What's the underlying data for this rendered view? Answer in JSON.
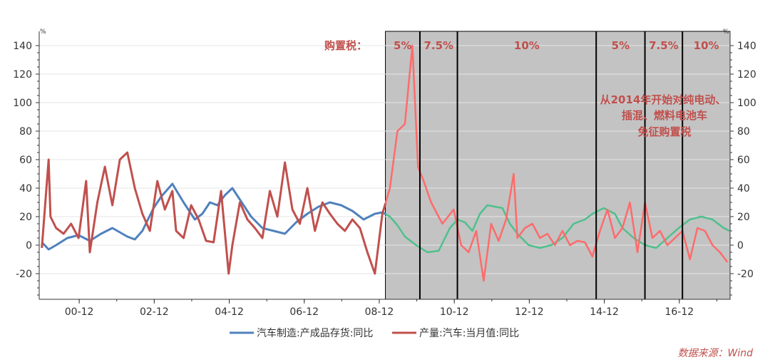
{
  "chart_data": {
    "type": "line",
    "left_unit": "%",
    "right_unit": "%",
    "y_ticks": [
      "140",
      "120",
      "100",
      "80",
      "60",
      "40",
      "20",
      "0",
      "-20"
    ],
    "ylim": [
      -38,
      150
    ],
    "x_ticks": [
      "00-12",
      "02-12",
      "04-12",
      "06-12",
      "08-12",
      "10-12",
      "12-12",
      "14-12",
      "16-12"
    ],
    "xlim": [
      1999.85,
      2018.27
    ],
    "grid": true,
    "legend_position": "bottom",
    "tax_label": "购置税：",
    "tax_periods": [
      {
        "start": 2009.08,
        "end": 2010.0,
        "label": "5%"
      },
      {
        "start": 2010.0,
        "end": 2011.0,
        "label": "7.5%"
      },
      {
        "start": 2011.0,
        "end": 2014.7,
        "label": "10%"
      },
      {
        "start": 2014.7,
        "end": 2016.0,
        "label": "5%"
      },
      {
        "start": 2016.0,
        "end": 2017.0,
        "label": "7.5%"
      },
      {
        "start": 2017.0,
        "end": 2018.27,
        "label": "10%"
      }
    ],
    "annotation": [
      "从2014年开始对纯电动、",
      "插混、燃料电池车",
      "免征购置税"
    ],
    "series": [
      {
        "name": "汽车制造:产成品存货:同比",
        "color": "#4f81bd",
        "color_in_shade": "#4fc08d",
        "x": [
          1999.92,
          2000.1,
          2000.3,
          2000.6,
          2000.9,
          2001.2,
          2001.5,
          2001.8,
          2002.0,
          2002.2,
          2002.4,
          2002.6,
          2002.9,
          2003.1,
          2003.4,
          2003.7,
          2004.0,
          2004.2,
          2004.4,
          2004.6,
          2004.8,
          2005.0,
          2005.2,
          2005.5,
          2005.8,
          2006.1,
          2006.4,
          2006.7,
          2007.0,
          2007.3,
          2007.6,
          2007.9,
          2008.2,
          2008.5,
          2008.8,
          2009.0,
          2009.2,
          2009.4,
          2009.6,
          2009.9,
          2010.2,
          2010.5,
          2010.8,
          2011.0,
          2011.2,
          2011.4,
          2011.6,
          2011.8,
          2012.0,
          2012.2,
          2012.4,
          2012.6,
          2012.9,
          2013.2,
          2013.5,
          2013.8,
          2014.1,
          2014.4,
          2014.6,
          2014.9,
          2015.2,
          2015.4,
          2015.7,
          2016.0,
          2016.3,
          2016.6,
          2016.9,
          2017.2,
          2017.5,
          2017.8,
          2018.1,
          2018.25
        ],
        "y": [
          2,
          -3,
          0,
          5,
          7,
          3,
          8,
          12,
          9,
          6,
          4,
          10,
          26,
          34,
          43,
          30,
          18,
          22,
          30,
          28,
          35,
          40,
          32,
          20,
          12,
          10,
          8,
          16,
          22,
          27,
          30,
          28,
          24,
          18,
          22,
          23,
          20,
          14,
          6,
          0,
          -5,
          -4,
          12,
          18,
          16,
          10,
          22,
          28,
          27,
          26,
          15,
          8,
          0,
          -2,
          0,
          5,
          15,
          18,
          22,
          26,
          22,
          12,
          5,
          0,
          -2,
          5,
          12,
          18,
          20,
          18,
          12,
          10
        ]
      },
      {
        "name": "产量:汽车:当月值:同比",
        "color": "#c0504d",
        "color_in_shade": "#ff6b6b",
        "x": [
          1999.92,
          2000.1,
          2000.15,
          2000.3,
          2000.5,
          2000.7,
          2000.9,
          2001.1,
          2001.2,
          2001.4,
          2001.6,
          2001.8,
          2002.0,
          2002.2,
          2002.4,
          2002.6,
          2002.8,
          2003.0,
          2003.2,
          2003.4,
          2003.5,
          2003.7,
          2003.9,
          2004.1,
          2004.3,
          2004.5,
          2004.7,
          2004.9,
          2005.0,
          2005.2,
          2005.4,
          2005.6,
          2005.8,
          2006.0,
          2006.2,
          2006.4,
          2006.6,
          2006.8,
          2007.0,
          2007.2,
          2007.4,
          2007.6,
          2007.8,
          2008.0,
          2008.2,
          2008.4,
          2008.6,
          2008.8,
          2009.0,
          2009.2,
          2009.4,
          2009.6,
          2009.8,
          2009.95,
          2010.1,
          2010.3,
          2010.6,
          2010.9,
          2011.1,
          2011.3,
          2011.5,
          2011.7,
          2011.9,
          2012.1,
          2012.3,
          2012.5,
          2012.6,
          2012.8,
          2013.0,
          2013.2,
          2013.4,
          2013.6,
          2013.8,
          2014.0,
          2014.2,
          2014.4,
          2014.6,
          2014.8,
          2015.0,
          2015.2,
          2015.4,
          2015.6,
          2015.8,
          2016.0,
          2016.2,
          2016.4,
          2016.6,
          2016.8,
          2017.0,
          2017.2,
          2017.4,
          2017.6,
          2017.8,
          2018.0,
          2018.2
        ],
        "y": [
          -2,
          60,
          20,
          12,
          8,
          15,
          5,
          45,
          -5,
          30,
          55,
          28,
          60,
          65,
          40,
          22,
          10,
          45,
          25,
          38,
          10,
          5,
          28,
          18,
          3,
          2,
          38,
          -20,
          0,
          30,
          18,
          12,
          5,
          38,
          20,
          58,
          25,
          15,
          40,
          10,
          30,
          22,
          15,
          10,
          18,
          12,
          -5,
          -20,
          22,
          40,
          80,
          85,
          140,
          55,
          45,
          30,
          15,
          25,
          0,
          -5,
          10,
          -25,
          15,
          3,
          18,
          50,
          5,
          12,
          15,
          5,
          8,
          0,
          10,
          0,
          3,
          2,
          -8,
          10,
          25,
          5,
          12,
          30,
          -5,
          30,
          5,
          10,
          0,
          5,
          10,
          -10,
          12,
          10,
          0,
          -5,
          -12
        ]
      }
    ]
  },
  "source": "数据来源：Wind"
}
